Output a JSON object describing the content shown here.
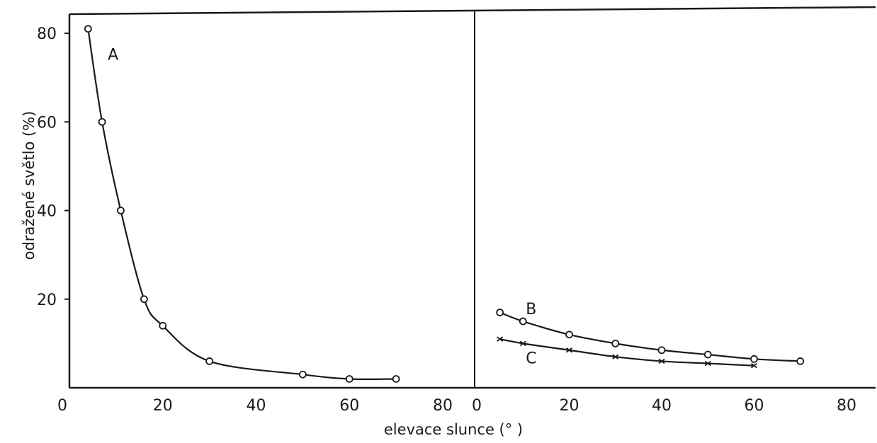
{
  "chart_data": [
    {
      "type": "line",
      "panel": "left",
      "xlabel": "elevace slunce (° )",
      "ylabel": "odražené světlo (%)",
      "xlim": [
        0,
        80
      ],
      "ylim": [
        0,
        80
      ],
      "x_ticks": [
        "0",
        "20",
        "40",
        "60",
        "80"
      ],
      "y_ticks": [
        "20",
        "40",
        "60",
        "80"
      ],
      "grid": false,
      "series": [
        {
          "name": "A",
          "marker": "circle",
          "x": [
            4,
            7,
            11,
            16,
            20,
            30,
            50,
            60,
            70
          ],
          "y": [
            81,
            60,
            40,
            20,
            14,
            6,
            3,
            2,
            2
          ]
        }
      ]
    },
    {
      "type": "line",
      "panel": "right",
      "xlim": [
        0,
        80
      ],
      "ylim": [
        0,
        80
      ],
      "x_ticks": [
        "0",
        "20",
        "40",
        "60",
        "80"
      ],
      "grid": false,
      "series": [
        {
          "name": "B",
          "marker": "circle",
          "x": [
            5,
            10,
            20,
            30,
            40,
            50,
            60,
            70
          ],
          "y": [
            17,
            15,
            12,
            10,
            8.5,
            7.5,
            6.5,
            6
          ]
        },
        {
          "name": "C",
          "marker": "x",
          "x": [
            5,
            10,
            20,
            30,
            40,
            50,
            60
          ],
          "y": [
            11,
            10,
            8.5,
            7,
            6,
            5.5,
            5
          ]
        }
      ]
    }
  ]
}
